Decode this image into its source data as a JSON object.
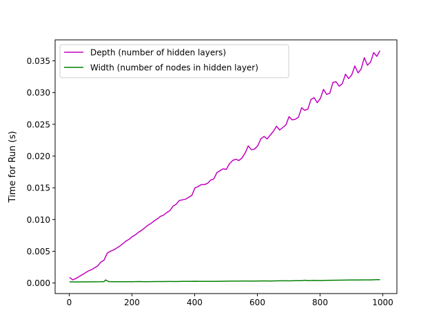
{
  "chart_data": {
    "type": "line",
    "title": "",
    "xlabel": "",
    "ylabel": "Time for Run (s)",
    "xlim": [
      -45,
      1045
    ],
    "ylim": [
      -0.00166,
      0.0383
    ],
    "xticks": [
      0,
      200,
      400,
      600,
      800,
      1000
    ],
    "xtick_labels": [
      "0",
      "200",
      "400",
      "600",
      "800",
      "1000"
    ],
    "yticks": [
      0.0,
      0.005,
      0.01,
      0.015,
      0.02,
      0.025,
      0.03,
      0.035
    ],
    "ytick_labels": [
      "0.000",
      "0.005",
      "0.010",
      "0.015",
      "0.020",
      "0.025",
      "0.030",
      "0.035"
    ],
    "grid": false,
    "legend_position": "upper-left",
    "series": [
      {
        "name": "Depth (number of hidden layers)",
        "color": "#bf00bf",
        "points": [
          [
            1,
            0.0009
          ],
          [
            11,
            0.0005
          ],
          [
            21,
            0.0007
          ],
          [
            31,
            0.001
          ],
          [
            41,
            0.0013
          ],
          [
            51,
            0.0016
          ],
          [
            61,
            0.0019
          ],
          [
            71,
            0.0021
          ],
          [
            81,
            0.0024
          ],
          [
            91,
            0.0027
          ],
          [
            101,
            0.0033
          ],
          [
            111,
            0.0036
          ],
          [
            121,
            0.0047
          ],
          [
            131,
            0.005
          ],
          [
            141,
            0.0052
          ],
          [
            151,
            0.0055
          ],
          [
            161,
            0.0058
          ],
          [
            171,
            0.0062
          ],
          [
            181,
            0.0066
          ],
          [
            191,
            0.0069
          ],
          [
            201,
            0.0073
          ],
          [
            211,
            0.0076
          ],
          [
            221,
            0.008
          ],
          [
            231,
            0.0083
          ],
          [
            241,
            0.0087
          ],
          [
            251,
            0.0091
          ],
          [
            261,
            0.0094
          ],
          [
            271,
            0.0098
          ],
          [
            281,
            0.0101
          ],
          [
            291,
            0.0105
          ],
          [
            301,
            0.0107
          ],
          [
            311,
            0.0111
          ],
          [
            321,
            0.0114
          ],
          [
            331,
            0.0121
          ],
          [
            341,
            0.0124
          ],
          [
            351,
            0.013
          ],
          [
            361,
            0.0131
          ],
          [
            371,
            0.0132
          ],
          [
            381,
            0.0135
          ],
          [
            391,
            0.0138
          ],
          [
            401,
            0.015
          ],
          [
            411,
            0.0152
          ],
          [
            421,
            0.0155
          ],
          [
            431,
            0.0155
          ],
          [
            441,
            0.0157
          ],
          [
            451,
            0.0162
          ],
          [
            461,
            0.0164
          ],
          [
            471,
            0.0174
          ],
          [
            481,
            0.0177
          ],
          [
            491,
            0.018
          ],
          [
            501,
            0.0179
          ],
          [
            511,
            0.0188
          ],
          [
            521,
            0.0193
          ],
          [
            531,
            0.0195
          ],
          [
            541,
            0.0193
          ],
          [
            551,
            0.0197
          ],
          [
            561,
            0.0205
          ],
          [
            571,
            0.0216
          ],
          [
            581,
            0.021
          ],
          [
            591,
            0.0211
          ],
          [
            601,
            0.0216
          ],
          [
            611,
            0.0227
          ],
          [
            621,
            0.0231
          ],
          [
            631,
            0.0227
          ],
          [
            641,
            0.0233
          ],
          [
            651,
            0.0239
          ],
          [
            661,
            0.0247
          ],
          [
            671,
            0.0241
          ],
          [
            681,
            0.0245
          ],
          [
            691,
            0.0249
          ],
          [
            701,
            0.0262
          ],
          [
            711,
            0.0257
          ],
          [
            721,
            0.0258
          ],
          [
            731,
            0.0261
          ],
          [
            741,
            0.0276
          ],
          [
            751,
            0.0272
          ],
          [
            761,
            0.0274
          ],
          [
            771,
            0.0289
          ],
          [
            781,
            0.0292
          ],
          [
            791,
            0.0284
          ],
          [
            801,
            0.0291
          ],
          [
            811,
            0.0305
          ],
          [
            821,
            0.0297
          ],
          [
            831,
            0.0299
          ],
          [
            841,
            0.0316
          ],
          [
            851,
            0.0317
          ],
          [
            861,
            0.031
          ],
          [
            871,
            0.0314
          ],
          [
            881,
            0.0329
          ],
          [
            891,
            0.0322
          ],
          [
            901,
            0.0328
          ],
          [
            911,
            0.0342
          ],
          [
            921,
            0.0331
          ],
          [
            931,
            0.0337
          ],
          [
            941,
            0.0355
          ],
          [
            951,
            0.0343
          ],
          [
            961,
            0.0348
          ],
          [
            971,
            0.0363
          ],
          [
            981,
            0.0357
          ],
          [
            991,
            0.0366
          ]
        ]
      },
      {
        "name": "Width (number of nodes in hidden layer)",
        "color": "#008000",
        "points": [
          [
            1,
            0.00018
          ],
          [
            21,
            0.00017
          ],
          [
            41,
            0.00018
          ],
          [
            61,
            0.00018
          ],
          [
            81,
            0.00019
          ],
          [
            101,
            0.0002
          ],
          [
            111,
            0.00022
          ],
          [
            116,
            0.0005
          ],
          [
            126,
            0.00022
          ],
          [
            141,
            0.0002
          ],
          [
            161,
            0.0002
          ],
          [
            181,
            0.0002
          ],
          [
            201,
            0.00021
          ],
          [
            221,
            0.00023
          ],
          [
            241,
            0.00021
          ],
          [
            261,
            0.00022
          ],
          [
            281,
            0.00024
          ],
          [
            301,
            0.00024
          ],
          [
            321,
            0.00025
          ],
          [
            341,
            0.00024
          ],
          [
            361,
            0.00026
          ],
          [
            381,
            0.00026
          ],
          [
            401,
            0.00028
          ],
          [
            421,
            0.00027
          ],
          [
            441,
            0.00026
          ],
          [
            461,
            0.00027
          ],
          [
            481,
            0.00028
          ],
          [
            501,
            0.00029
          ],
          [
            521,
            0.0003
          ],
          [
            541,
            0.0003
          ],
          [
            561,
            0.00031
          ],
          [
            581,
            0.0003
          ],
          [
            601,
            0.00032
          ],
          [
            621,
            0.00033
          ],
          [
            641,
            0.00032
          ],
          [
            661,
            0.00034
          ],
          [
            681,
            0.00035
          ],
          [
            701,
            0.00034
          ],
          [
            721,
            0.00037
          ],
          [
            741,
            0.00038
          ],
          [
            751,
            0.00044
          ],
          [
            761,
            0.00038
          ],
          [
            781,
            0.00041
          ],
          [
            801,
            0.00039
          ],
          [
            821,
            0.00043
          ],
          [
            841,
            0.00044
          ],
          [
            861,
            0.00045
          ],
          [
            881,
            0.00046
          ],
          [
            901,
            0.00048
          ],
          [
            921,
            0.00048
          ],
          [
            941,
            0.00049
          ],
          [
            961,
            0.0005
          ],
          [
            981,
            0.00054
          ],
          [
            991,
            0.00054
          ]
        ]
      }
    ]
  }
}
